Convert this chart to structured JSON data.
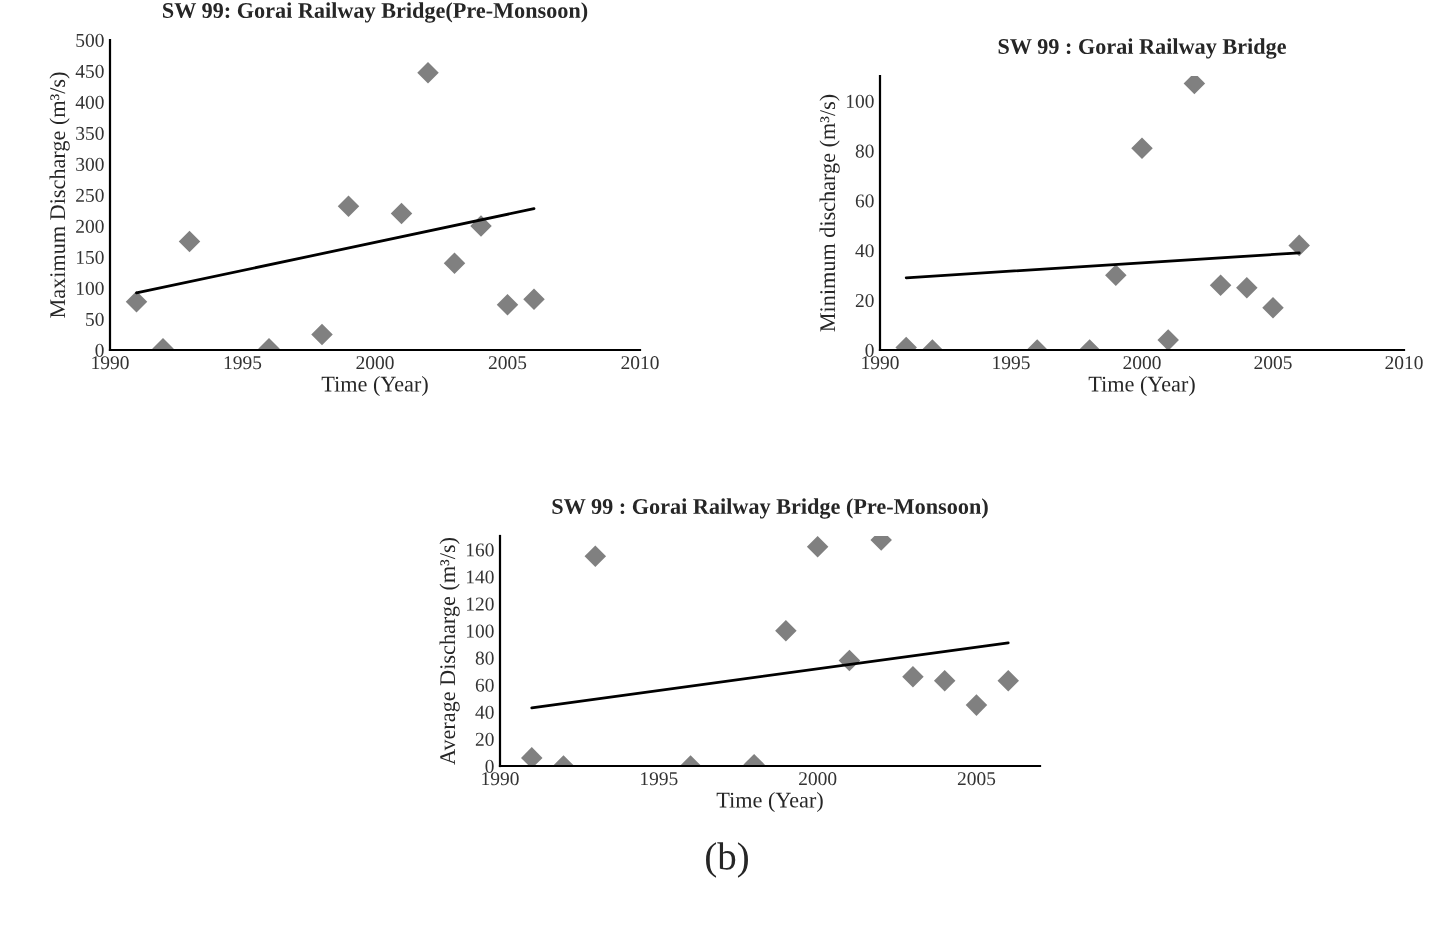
{
  "chart_data": [
    {
      "type": "scatter",
      "title": "SW 99: Gorai Railway Bridge(Pre-Monsoon)",
      "xlabel": "Time (Year)",
      "ylabel": "Maximum Discharge (m³/s)",
      "grid": false,
      "legend": false,
      "xlim": [
        1990,
        2010
      ],
      "xticks": [
        1990,
        1995,
        2000,
        2005,
        2010
      ],
      "ylim": [
        0,
        500
      ],
      "yticks": [
        0,
        50,
        100,
        150,
        200,
        250,
        300,
        350,
        400,
        450,
        500
      ],
      "series": [
        {
          "marker": "diamond",
          "color": "#808080",
          "x": [
            1991,
            1992,
            1993,
            1996,
            1998,
            1999,
            2001,
            2002,
            2003,
            2004,
            2005,
            2006
          ],
          "values": [
            78,
            2,
            175,
            2,
            25,
            232,
            220,
            447,
            140,
            200,
            73,
            82
          ]
        },
        {
          "type": "line",
          "marker": "none",
          "color": "#000000",
          "x": [
            1991,
            2006
          ],
          "values": [
            92,
            228
          ]
        }
      ]
    },
    {
      "type": "scatter",
      "title": "SW 99 : Gorai Railway Bridge",
      "xlabel": "Time (Year)",
      "ylabel": "Minimum discharge (m³/s)",
      "grid": false,
      "legend": false,
      "xlim": [
        1990,
        2010
      ],
      "xticks": [
        1990,
        1995,
        2000,
        2005,
        2010
      ],
      "ylim": [
        0,
        110
      ],
      "yticks": [
        0,
        20,
        40,
        60,
        80,
        100
      ],
      "series": [
        {
          "marker": "diamond",
          "color": "#808080",
          "x": [
            1991,
            1992,
            1996,
            1998,
            1999,
            2000,
            2001,
            2002,
            2003,
            2004,
            2005,
            2006
          ],
          "values": [
            1,
            0,
            0,
            0,
            30,
            81,
            4,
            107,
            26,
            25,
            17,
            42
          ]
        },
        {
          "type": "line",
          "marker": "none",
          "color": "#000000",
          "x": [
            1991,
            2006
          ],
          "values": [
            29,
            39
          ]
        }
      ]
    },
    {
      "type": "scatter",
      "title": "SW 99 : Gorai Railway Bridge (Pre-Monsoon)",
      "xlabel": "Time (Year)",
      "ylabel": "Average Discharge (m³/s)",
      "grid": false,
      "legend": false,
      "xlim": [
        1990,
        2007
      ],
      "xticks": [
        1990,
        1995,
        2000,
        2005
      ],
      "ylim": [
        0,
        170
      ],
      "yticks": [
        0,
        20,
        40,
        60,
        80,
        100,
        120,
        140,
        160
      ],
      "annotations": [
        "(b)"
      ],
      "series": [
        {
          "marker": "diamond",
          "color": "#808080",
          "x": [
            1991,
            1992,
            1993,
            1996,
            1998,
            1999,
            2000,
            2001,
            2002,
            2003,
            2004,
            2005,
            2006
          ],
          "values": [
            6,
            0,
            155,
            0,
            1,
            100,
            162,
            78,
            167,
            66,
            63,
            45,
            63
          ]
        },
        {
          "type": "line",
          "marker": "none",
          "color": "#000000",
          "x": [
            1991,
            2006
          ],
          "values": [
            43,
            91
          ]
        }
      ]
    }
  ]
}
